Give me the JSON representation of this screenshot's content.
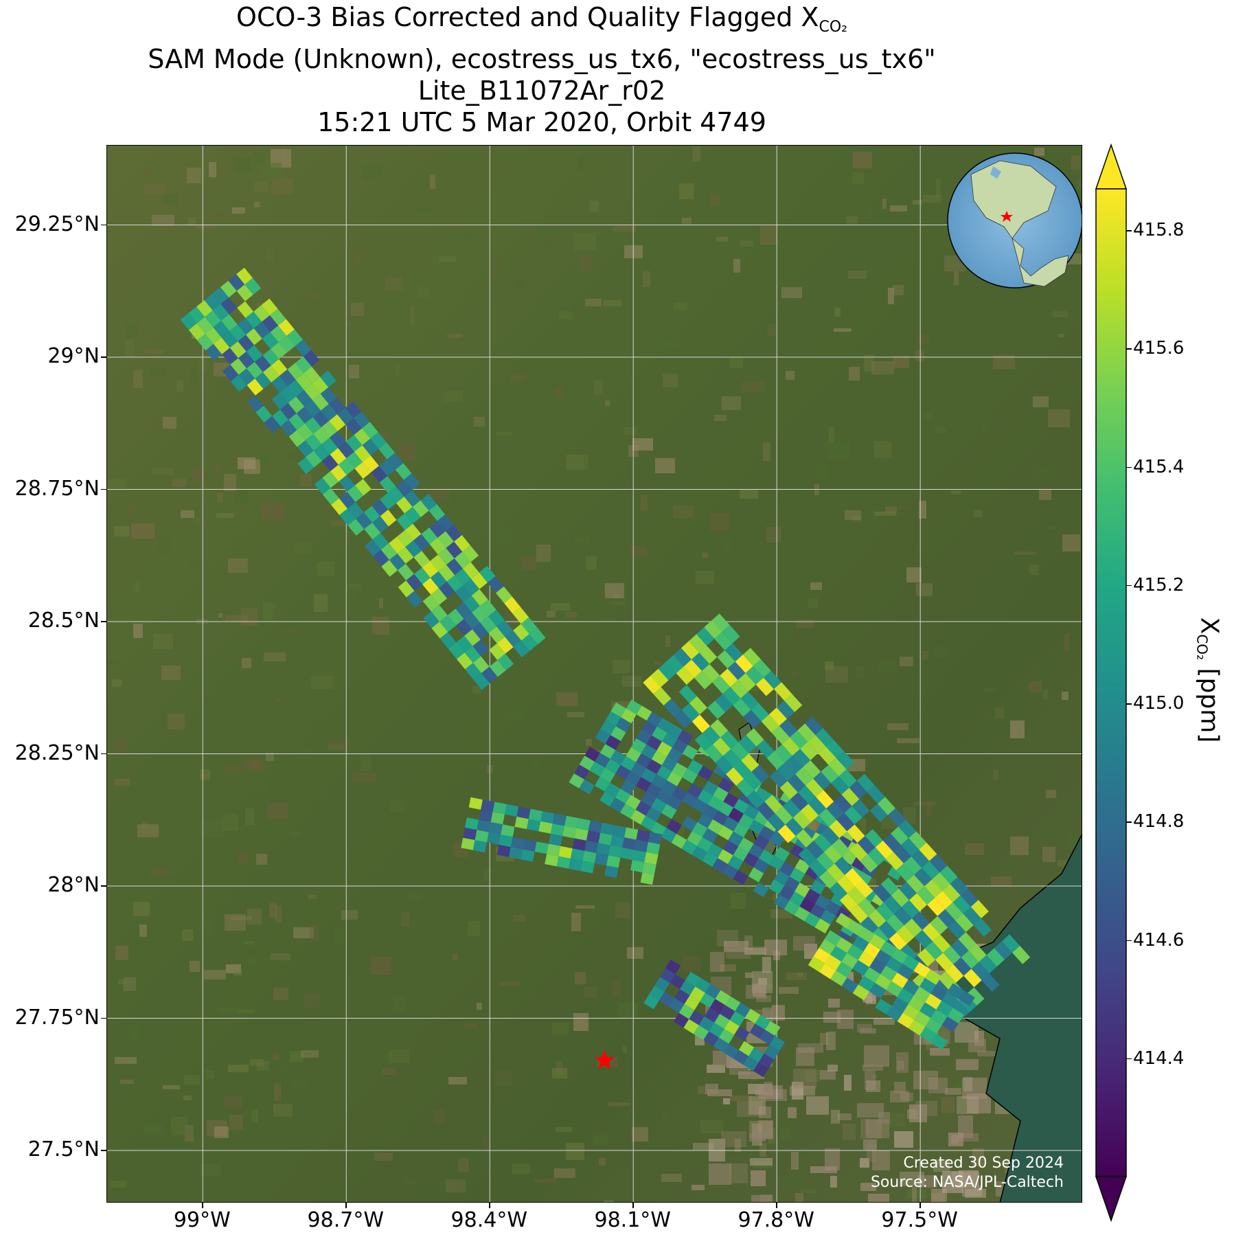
{
  "figure": {
    "title_lines": [
      "OCO-3 Bias Corrected and Quality Flagged X",
      "SAM Mode (Unknown), ecostress_us_tx6, \"ecostress_us_tx6\"",
      "Lite_B11072Ar_r02",
      "15:21 UTC 5 Mar 2020, Orbit 4749"
    ],
    "title_subscript": "CO₂",
    "credits_created": "Created 30 Sep 2024",
    "credits_source": "Source: NASA/JPL-Caltech"
  },
  "map": {
    "lon_range": [
      -99.2,
      -97.16
    ],
    "lat_range": [
      27.4,
      29.4
    ],
    "lat_ticks": [
      "29.25°N",
      "29°N",
      "28.75°N",
      "28.5°N",
      "28.25°N",
      "28°N",
      "27.75°N",
      "27.5°N"
    ],
    "lon_ticks": [
      "99°W",
      "98.7°W",
      "98.4°W",
      "98.1°W",
      "97.8°W",
      "97.5°W"
    ],
    "target_marker": {
      "lon": -98.16,
      "lat": 27.67,
      "symbol": "red-star"
    },
    "basemap": "satellite imagery (green/brown terrain, Gulf of Mexico coast at lower right)",
    "inset_globe": "globe centred on North America with red star marker"
  },
  "colorbar": {
    "colormap": "viridis",
    "range": [
      414.2,
      415.87
    ],
    "extend": "both",
    "ticks": [
      "415.8",
      "415.6",
      "415.4",
      "415.2",
      "415.0",
      "414.8",
      "414.6",
      "414.4"
    ],
    "label_main": "X",
    "label_sub": "CO₂",
    "label_units": " [ppm]"
  },
  "chart_data": {
    "type": "heatmap",
    "title": "OCO-3 Bias Corrected and Quality Flagged XCO2",
    "xlabel": "",
    "ylabel": "",
    "value_label": "XCO2 [ppm]",
    "clim": [
      414.2,
      415.87
    ],
    "swaths": [
      {
        "name": "northwest swath",
        "from": [
          -98.98,
          29.12
        ],
        "to": [
          -98.35,
          28.42
        ],
        "rows": 8,
        "cols": 36,
        "seed": 11,
        "bias": 0.45
      },
      {
        "name": "central swath",
        "from": [
          -98.18,
          28.28
        ],
        "to": [
          -97.58,
          27.96
        ],
        "rows": 10,
        "cols": 28,
        "seed": 23,
        "bias": 0.2
      },
      {
        "name": "eastern swath",
        "from": [
          -98.0,
          28.45
        ],
        "to": [
          -97.35,
          27.8
        ],
        "rows": 10,
        "cols": 30,
        "seed": 37,
        "bias": 0.55
      },
      {
        "name": "west cluster",
        "from": [
          -98.45,
          28.12
        ],
        "to": [
          -98.05,
          28.05
        ],
        "rows": 5,
        "cols": 16,
        "seed": 41,
        "bias": 0.3
      },
      {
        "name": "south cluster",
        "from": [
          -98.05,
          27.82
        ],
        "to": [
          -97.8,
          27.68
        ],
        "rows": 5,
        "cols": 12,
        "seed": 53,
        "bias": 0.25
      },
      {
        "name": "southeast cluster",
        "from": [
          -97.7,
          27.9
        ],
        "to": [
          -97.42,
          27.74
        ],
        "rows": 6,
        "cols": 12,
        "seed": 61,
        "bias": 0.6
      }
    ]
  }
}
